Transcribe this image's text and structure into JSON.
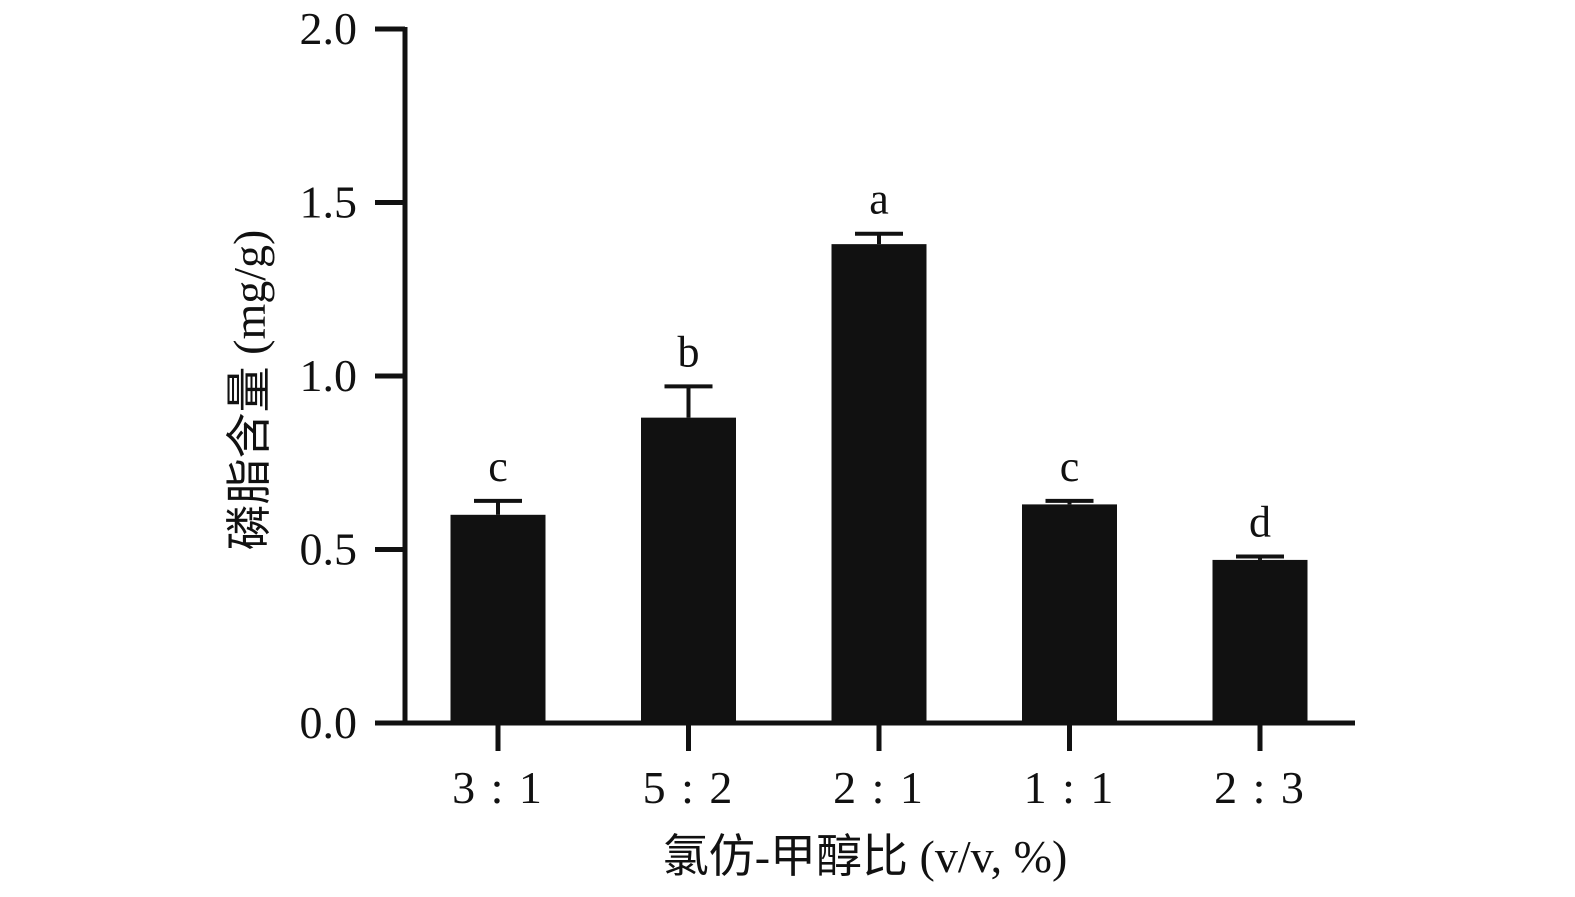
{
  "chart_data": {
    "type": "bar",
    "title": "",
    "xlabel": "氯仿-甲醇比 (v/v, %)",
    "ylabel": "磷脂含量 (mg/g)",
    "ylim": [
      0,
      2.0
    ],
    "yticks": [
      "0.0",
      "0.5",
      "1.0",
      "1.5",
      "2.0"
    ],
    "categories": [
      "3 : 1",
      "5 : 2",
      "2 : 1",
      "1 : 1",
      "2 : 3"
    ],
    "values": [
      0.6,
      0.88,
      1.38,
      0.63,
      0.47
    ],
    "errors": [
      0.04,
      0.09,
      0.03,
      0.01,
      0.01
    ],
    "significance": [
      "c",
      "b",
      "a",
      "c",
      "d"
    ],
    "colors": {
      "bar": "#111111",
      "axis": "#111111"
    },
    "grid": false,
    "legend": "none"
  }
}
